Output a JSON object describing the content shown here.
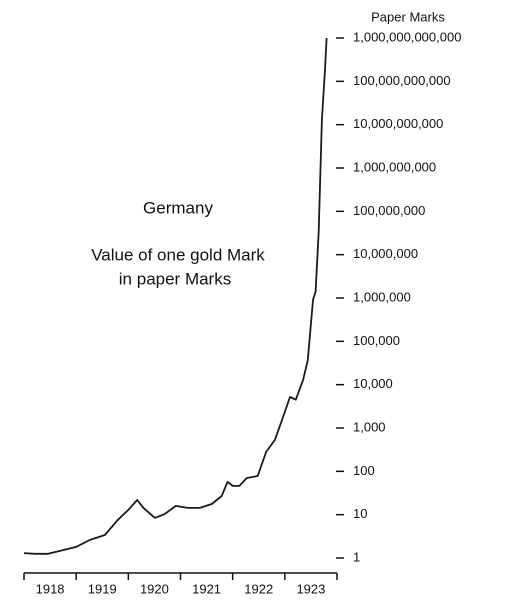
{
  "chart_data": {
    "type": "line",
    "title": "Germany",
    "subtitle": [
      "Value of one gold Mark",
      "in paper Marks"
    ],
    "y_label": "Paper Marks",
    "yscale": "log",
    "color": "#1a1a1a",
    "x": [
      1918.0,
      1918.21,
      1918.46,
      1918.73,
      1919.0,
      1919.26,
      1919.55,
      1919.8,
      1920.0,
      1920.17,
      1920.29,
      1920.51,
      1920.7,
      1920.91,
      1921.14,
      1921.37,
      1921.6,
      1921.79,
      1921.9,
      1922.0,
      1922.13,
      1922.27,
      1922.48,
      1922.64,
      1922.81,
      1922.96,
      1923.1,
      1923.21,
      1923.35,
      1923.44,
      1923.54,
      1923.59,
      1923.65,
      1923.71,
      1923.77,
      1923.8
    ],
    "values": [
      1.3,
      1.25,
      1.25,
      1.5,
      1.8,
      2.6,
      3.4,
      7.6,
      12.9,
      21.8,
      14.3,
      8.4,
      10.4,
      15.9,
      14.3,
      14.3,
      17.6,
      27,
      57,
      46,
      46,
      70,
      78,
      280,
      530,
      1700,
      5200,
      4500,
      12900,
      37000,
      910000,
      1400000,
      34000000,
      13000000000,
      190000000000,
      1000000000000
    ],
    "xlim": [
      1918,
      1924
    ],
    "xticks": [
      {
        "value": 1918.5,
        "label": "1918"
      },
      {
        "value": 1919.5,
        "label": "1919"
      },
      {
        "value": 1920.5,
        "label": "1920"
      },
      {
        "value": 1921.5,
        "label": "1921"
      },
      {
        "value": 1922.5,
        "label": "1922"
      },
      {
        "value": 1923.5,
        "label": "1923"
      }
    ],
    "ylim": [
      1,
      1000000000000
    ],
    "yticks": [
      1,
      10,
      100,
      {
        "value": 1000,
        "label": "1,000"
      },
      {
        "value": 10000,
        "label": "10,000"
      },
      {
        "value": 100000,
        "label": "100,000"
      },
      {
        "value": 1000000,
        "label": "1,000,000"
      },
      {
        "value": 10000000,
        "label": "10,000,000"
      },
      {
        "value": 100000000,
        "label": "100,000,000"
      },
      {
        "value": 1000000000,
        "label": "1,000,000,000"
      },
      {
        "value": 10000000000,
        "label": "10,000,000,000"
      },
      {
        "value": 100000000000,
        "label": "100,000,000,000"
      },
      {
        "value": 1000000000000,
        "label": "1,000,000,000,000"
      }
    ]
  }
}
